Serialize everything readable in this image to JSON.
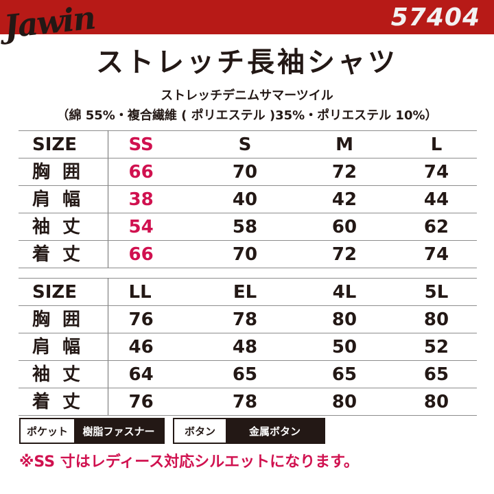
{
  "header": {
    "brand": "Jawin",
    "product_code": "57404",
    "band_color": "#b71a17"
  },
  "title": "ストレッチ長袖シャツ",
  "fabric": {
    "name": "ストレッチデニムサマーツイル",
    "composition": "（綿 55%・複合繊維 ( ポリエステル )35%・ポリエステル 10%）"
  },
  "accent_color": "#d0114f",
  "tables": [
    {
      "header": {
        "label": "SIZE",
        "sizes": [
          "SS",
          "S",
          "M",
          "L"
        ]
      },
      "rows": [
        {
          "label": "胸囲",
          "values": [
            "66",
            "70",
            "72",
            "74"
          ]
        },
        {
          "label": "肩幅",
          "values": [
            "38",
            "40",
            "42",
            "44"
          ]
        },
        {
          "label": "袖丈",
          "values": [
            "54",
            "58",
            "60",
            "62"
          ]
        },
        {
          "label": "着丈",
          "values": [
            "66",
            "70",
            "72",
            "74"
          ]
        }
      ]
    },
    {
      "header": {
        "label": "SIZE",
        "sizes": [
          "LL",
          "EL",
          "4L",
          "5L"
        ]
      },
      "rows": [
        {
          "label": "胸囲",
          "values": [
            "76",
            "78",
            "80",
            "80"
          ]
        },
        {
          "label": "肩幅",
          "values": [
            "46",
            "48",
            "50",
            "52"
          ]
        },
        {
          "label": "袖丈",
          "values": [
            "64",
            "65",
            "65",
            "65"
          ]
        },
        {
          "label": "着丈",
          "values": [
            "76",
            "78",
            "80",
            "80"
          ]
        }
      ]
    }
  ],
  "specs": {
    "pocket": {
      "key": "ポケット",
      "value": "樹脂ファスナー"
    },
    "button": {
      "key": "ボタン",
      "value": "金属ボタン"
    }
  },
  "note": "※SS 寸はレディース対応シルエットになります。"
}
